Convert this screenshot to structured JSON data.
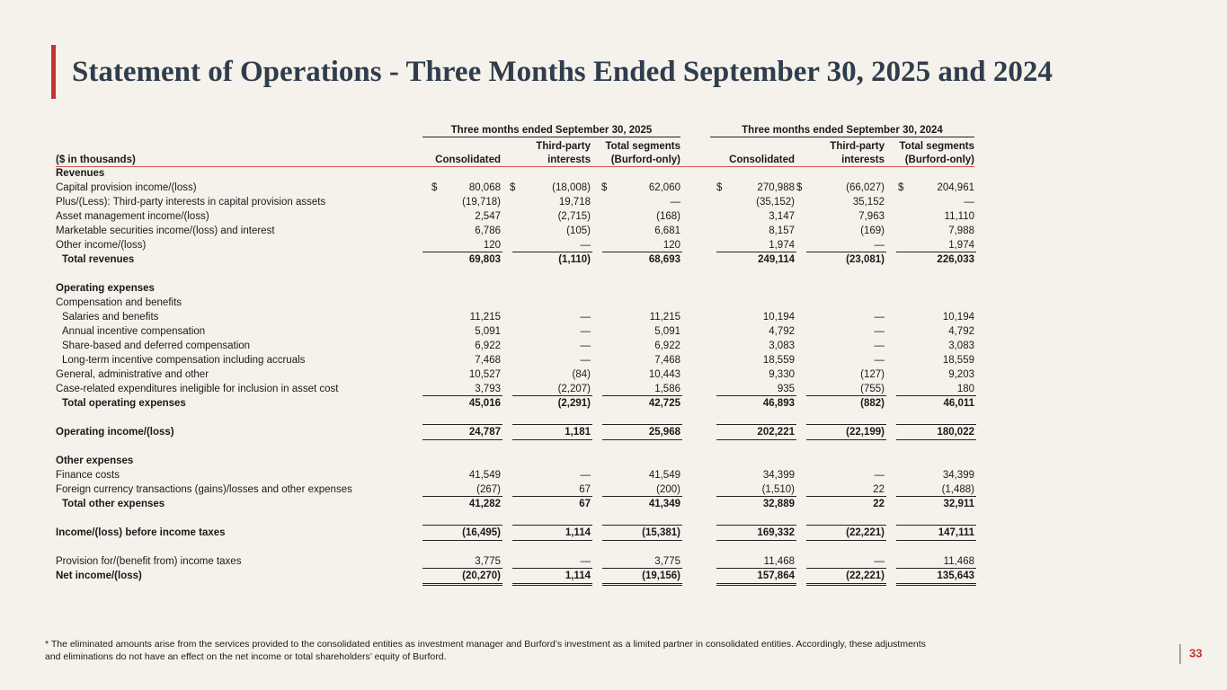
{
  "header": {
    "title": "Statement of Operations - Three Months Ended September 30, 2025 and 2024"
  },
  "table": {
    "units": "($ in thousands)",
    "groups": [
      {
        "title": "Three months ended September 30, 2025",
        "columns": [
          [
            "Consolidated"
          ],
          [
            "Third-party",
            "interests"
          ],
          [
            "Total segments",
            "(Burford-only)"
          ]
        ]
      },
      {
        "title": "Three months ended September 30, 2024",
        "columns": [
          [
            "Consolidated"
          ],
          [
            "Third-party",
            "interests"
          ],
          [
            "Total segments",
            "(Burford-only)"
          ]
        ]
      }
    ],
    "rows": [
      {
        "label": "Revenues"
      },
      {
        "label": "Capital provision income/(loss)",
        "currency_symbol": "$",
        "values": [
          "80,068",
          "(18,008)",
          "62,060",
          "270,988",
          "(66,027)",
          "204,961"
        ]
      },
      {
        "label": "Plus/(Less): Third-party interests in capital provision assets",
        "values": [
          "(19,718)",
          "19,718",
          "—",
          "(35,152)",
          "35,152",
          "—"
        ]
      },
      {
        "label": "Asset management income/(loss)",
        "values": [
          "2,547",
          "(2,715)",
          "(168)",
          "3,147",
          "7,963",
          "11,110"
        ]
      },
      {
        "label": "Marketable securities income/(loss) and interest",
        "values": [
          "6,786",
          "(105)",
          "6,681",
          "8,157",
          "(169)",
          "7,988"
        ]
      },
      {
        "label": "Other income/(loss)",
        "values": [
          "120",
          "—",
          "120",
          "1,974",
          "—",
          "1,974"
        ]
      },
      {
        "label": "Total revenues",
        "values": [
          "69,803",
          "(1,110)",
          "68,693",
          "249,114",
          "(23,081)",
          "226,033"
        ]
      },
      {
        "label": "Operating expenses"
      },
      {
        "label": "Compensation and benefits"
      },
      {
        "label": "Salaries and benefits",
        "values": [
          "11,215",
          "—",
          "11,215",
          "10,194",
          "—",
          "10,194"
        ]
      },
      {
        "label": "Annual incentive compensation",
        "values": [
          "5,091",
          "—",
          "5,091",
          "4,792",
          "—",
          "4,792"
        ]
      },
      {
        "label": "Share-based and deferred compensation",
        "values": [
          "6,922",
          "—",
          "6,922",
          "3,083",
          "—",
          "3,083"
        ]
      },
      {
        "label": "Long-term incentive compensation including accruals",
        "values": [
          "7,468",
          "—",
          "7,468",
          "18,559",
          "—",
          "18,559"
        ]
      },
      {
        "label": "General, administrative and other",
        "values": [
          "10,527",
          "(84)",
          "10,443",
          "9,330",
          "(127)",
          "9,203"
        ]
      },
      {
        "label": "Case-related expenditures ineligible for inclusion in asset cost",
        "values": [
          "3,793",
          "(2,207)",
          "1,586",
          "935",
          "(755)",
          "180"
        ]
      },
      {
        "label": "Total operating expenses",
        "values": [
          "45,016",
          "(2,291)",
          "42,725",
          "46,893",
          "(882)",
          "46,011"
        ]
      },
      {
        "label": "Operating income/(loss)",
        "values": [
          "24,787",
          "1,181",
          "25,968",
          "202,221",
          "(22,199)",
          "180,022"
        ]
      },
      {
        "label": "Other expenses"
      },
      {
        "label": "Finance costs",
        "values": [
          "41,549",
          "—",
          "41,549",
          "34,399",
          "—",
          "34,399"
        ]
      },
      {
        "label": "Foreign currency transactions (gains)/losses and other expenses",
        "values": [
          "(267)",
          "67",
          "(200)",
          "(1,510)",
          "22",
          "(1,488)"
        ]
      },
      {
        "label": "Total other expenses",
        "values": [
          "41,282",
          "67",
          "41,349",
          "32,889",
          "22",
          "32,911"
        ]
      },
      {
        "label": "Income/(loss) before income taxes",
        "values": [
          "(16,495)",
          "1,114",
          "(15,381)",
          "169,332",
          "(22,221)",
          "147,111"
        ]
      },
      {
        "label": "Provision for/(benefit from) income taxes",
        "values": [
          "3,775",
          "—",
          "3,775",
          "11,468",
          "—",
          "11,468"
        ]
      },
      {
        "label": "Net income/(loss)",
        "values": [
          "(20,270)",
          "1,114",
          "(19,156)",
          "157,864",
          "(22,221)",
          "135,643"
        ]
      }
    ]
  },
  "footnote": [
    "* The eliminated amounts arise from the services provided to the consolidated entities as investment manager and Burford’s investment as a limited partner in consolidated entities. Accordingly, these adjustments",
    "and eliminations do not have an effect on the net income or total shareholders’ equity of Burford."
  ],
  "page_number": "33"
}
